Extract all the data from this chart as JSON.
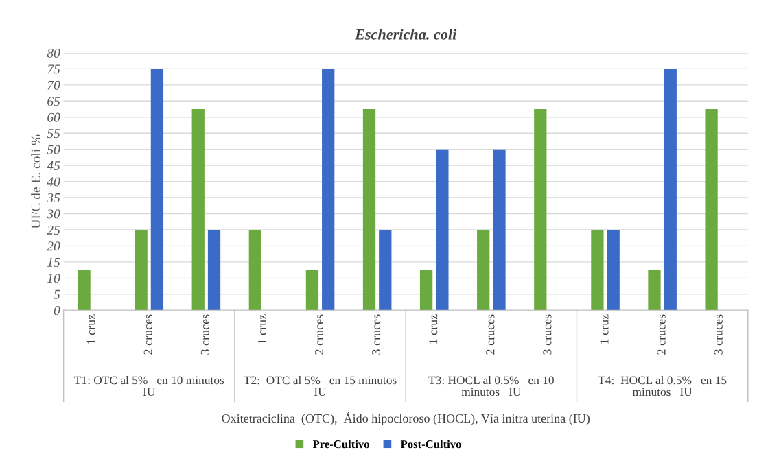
{
  "chart_data": {
    "type": "bar",
    "title": "Eschericha. coli",
    "categories": [
      "1 cruz",
      "2 cruces",
      "3 cruces",
      "1 cruz",
      "2 cruces",
      "3 cruces",
      "1 cruz",
      "2 cruces",
      "3 cruces",
      "1 cruz",
      "2 cruces",
      "3 cruces"
    ],
    "annotations": [
      "T1: OTC al 5%   en 10 minutos\nIU",
      "T2:  OTC al 5%   en 15 minutos\nIU",
      "T3: HOCL al 0.5%   en 10\nminutos   IU",
      "T4:  HOCL al 0.5%   en 15\nminutos   IU"
    ],
    "series": [
      {
        "name": "Pre-Cultivo",
        "color": "#6aaa3e",
        "values": [
          12.5,
          25,
          62.5,
          25,
          12.5,
          62.5,
          12.5,
          25,
          62.5,
          25,
          12.5,
          62.5
        ]
      },
      {
        "name": "Post-Cultivo",
        "color": "#3a6bc6",
        "values": [
          0,
          75,
          25,
          0,
          75,
          25,
          50,
          50,
          0,
          25,
          75,
          0
        ]
      }
    ],
    "xlabel": "Oxitetraciclina  (OTC),  Áido hipocloroso (HOCL), Vía initra uterina (IU)",
    "ylabel": "UFC de E. coli %",
    "ylim": [
      0,
      80
    ],
    "yticks": [
      0,
      5,
      10,
      15,
      20,
      25,
      30,
      35,
      40,
      45,
      50,
      55,
      60,
      65,
      70,
      75,
      80
    ],
    "grid": "y",
    "legend": "bottom"
  }
}
